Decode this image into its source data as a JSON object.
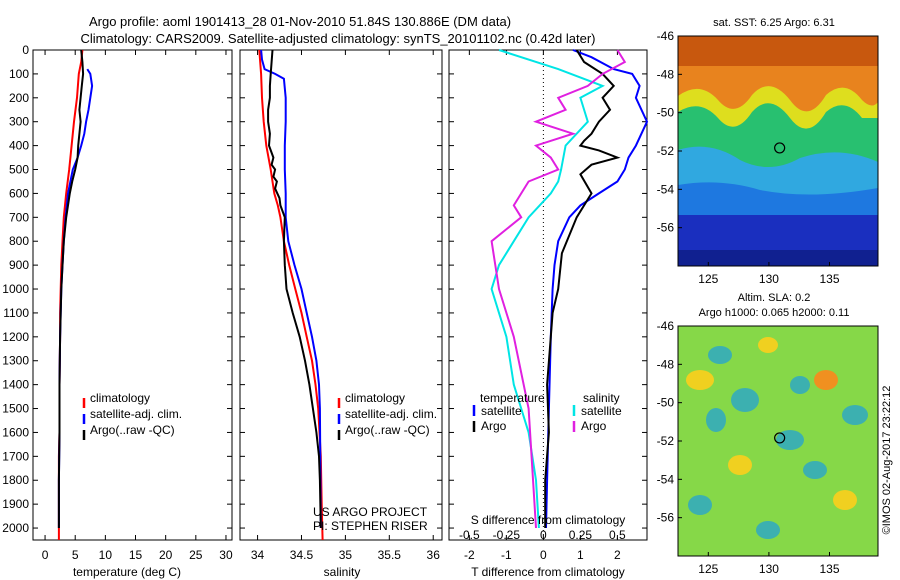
{
  "header": {
    "line1": "Argo profile: aoml 1901413_28 01-Nov-2010 51.84S 130.886E (DM data)",
    "line2": "Climatology: CARS2009. Satellite-adjusted climatology: synTS_20101102.nc (0.42d later)"
  },
  "colors": {
    "climatology": "#ff0000",
    "satellite": "#0000ff",
    "argo": "#000000",
    "sat_salinity": "#00e5e5",
    "argo_salinity": "#e020e0"
  },
  "depth_ticks": [
    0,
    100,
    200,
    300,
    400,
    500,
    600,
    700,
    800,
    900,
    1000,
    1100,
    1200,
    1300,
    1400,
    1500,
    1600,
    1700,
    1800,
    1900,
    2000
  ],
  "legend_labels": [
    "climatology",
    "satellite-adj. clim.",
    "Argo(..raw -QC)"
  ],
  "chart_data": [
    {
      "type": "line",
      "xlabel": "temperature (deg C)",
      "xticks": [
        0,
        5,
        10,
        15,
        20,
        25,
        30
      ],
      "xlim": [
        -2,
        31
      ],
      "ylim": [
        2050,
        0
      ],
      "series": [
        {
          "name": "climatology",
          "color": "#ff0000",
          "x": [
            6.2,
            6.0,
            5.6,
            5.3,
            4.8,
            4.4,
            4.0,
            3.5,
            3.1,
            2.9,
            2.7,
            2.6,
            2.5,
            2.5,
            2.4,
            2.4,
            2.3,
            2.3,
            2.3,
            2.3
          ],
          "y": [
            0,
            50,
            100,
            200,
            300,
            400,
            500,
            600,
            700,
            800,
            900,
            1000,
            1100,
            1200,
            1400,
            1600,
            1700,
            1800,
            1900,
            2050
          ]
        },
        {
          "name": "satellite-adj. clim.",
          "color": "#0000ff",
          "x": [
            7.0,
            7.5,
            7.8,
            7.5,
            7.2,
            6.8,
            6.5,
            6.0,
            5.4,
            4.6,
            3.8,
            3.4,
            3.1,
            2.9,
            2.7,
            2.6,
            2.5,
            2.4,
            2.4,
            2.3,
            2.3,
            2.3
          ],
          "y": [
            80,
            100,
            150,
            200,
            250,
            300,
            350,
            400,
            450,
            500,
            600,
            700,
            800,
            900,
            1000,
            1100,
            1200,
            1400,
            1600,
            1800,
            1900,
            2000
          ]
        },
        {
          "name": "Argo(..raw -QC)",
          "color": "#000000",
          "x": [
            6.0,
            6.2,
            6.3,
            6.1,
            5.9,
            5.7,
            5.9,
            5.7,
            5.5,
            5.4,
            5.0,
            4.5,
            4.1,
            3.5,
            3.1,
            2.9,
            2.7,
            2.6,
            2.5,
            2.4,
            2.4,
            2.3,
            2.3,
            2.3
          ],
          "y": [
            0,
            50,
            100,
            150,
            200,
            250,
            300,
            350,
            400,
            450,
            500,
            550,
            600,
            700,
            800,
            900,
            1000,
            1100,
            1200,
            1400,
            1600,
            1800,
            1900,
            2000
          ]
        }
      ]
    },
    {
      "type": "line",
      "xlabel": "salinity",
      "xticks": [
        34,
        34.5,
        35,
        35.5,
        36
      ],
      "xlim": [
        33.8,
        36.1
      ],
      "ylim": [
        2050,
        0
      ],
      "series": [
        {
          "name": "climatology",
          "color": "#ff0000",
          "x": [
            34.02,
            34.04,
            34.05,
            34.07,
            34.1,
            34.15,
            34.19,
            34.23,
            34.26,
            34.3,
            34.36,
            34.43,
            34.5,
            34.56,
            34.62,
            34.66,
            34.69,
            34.72,
            34.73,
            34.74
          ],
          "y": [
            0,
            100,
            200,
            300,
            400,
            500,
            600,
            650,
            700,
            800,
            900,
            1000,
            1100,
            1200,
            1300,
            1400,
            1500,
            1700,
            1900,
            2050
          ]
        },
        {
          "name": "satellite-adj. clim.",
          "color": "#0000ff",
          "x": [
            34.04,
            34.05,
            34.08,
            34.2,
            34.3,
            34.32,
            34.32,
            34.31,
            34.31,
            34.32,
            34.32,
            34.35,
            34.42,
            34.5,
            34.56,
            34.62,
            34.67,
            34.7,
            34.71,
            34.72
          ],
          "y": [
            0,
            40,
            80,
            100,
            120,
            200,
            300,
            400,
            500,
            600,
            700,
            800,
            900,
            1000,
            1100,
            1200,
            1300,
            1400,
            1500,
            2000
          ]
        },
        {
          "name": "Argo(..raw -QC)",
          "color": "#000000",
          "x": [
            34.17,
            34.16,
            34.15,
            34.14,
            34.14,
            34.12,
            34.12,
            34.14,
            34.13,
            34.18,
            34.16,
            34.2,
            34.18,
            34.22,
            34.2,
            34.25,
            34.26,
            34.31,
            34.3,
            34.31,
            34.33,
            34.4,
            34.48,
            34.54,
            34.59,
            34.63,
            34.67,
            34.7,
            34.71,
            34.72
          ],
          "y": [
            0,
            50,
            100,
            150,
            200,
            250,
            300,
            350,
            400,
            450,
            480,
            500,
            530,
            550,
            580,
            620,
            650,
            700,
            800,
            900,
            1000,
            1100,
            1200,
            1300,
            1400,
            1500,
            1600,
            1700,
            1800,
            2000
          ]
        }
      ],
      "annotations": [
        "US ARGO PROJECT",
        "PI: STEPHEN RISER"
      ]
    },
    {
      "type": "line",
      "xlabel": "T difference from climatology",
      "xticks": [
        -2,
        -1,
        0,
        1,
        2
      ],
      "xlim": [
        -2.55,
        2.8
      ],
      "ylim": [
        2050,
        0
      ],
      "secondary_axis": {
        "label": "S difference from climatology",
        "ticks": [
          -0.5,
          -0.25,
          0,
          0.25,
          0.5
        ]
      },
      "legend_headings": [
        "temperature",
        "salinity"
      ],
      "legend_entries": [
        "satellite",
        "Argo",
        "satellite",
        "Argo"
      ],
      "series": [
        {
          "name": "temperature satellite",
          "color": "#0000ff",
          "x": [
            0.8,
            1.3,
            1.9,
            2.4,
            2.6,
            2.5,
            2.8,
            2.5,
            2.3,
            2.2,
            2.0,
            1.5,
            1.0,
            0.7,
            0.4,
            0.3,
            0.25,
            0.2,
            0.15,
            0.1,
            0.07
          ],
          "y": [
            0,
            30,
            80,
            100,
            150,
            200,
            300,
            400,
            450,
            500,
            550,
            600,
            650,
            700,
            800,
            900,
            1000,
            1200,
            1500,
            1800,
            2000
          ]
        },
        {
          "name": "temperature Argo",
          "color": "#000000",
          "x": [
            0.9,
            1.1,
            1.6,
            1.9,
            1.6,
            1.8,
            1.5,
            1.3,
            1.1,
            1.0,
            1.5,
            2.0,
            1.3,
            1.0,
            1.3,
            0.9,
            0.5,
            0.4,
            0.25,
            0.2,
            0.1,
            0.15,
            0.05,
            0.05
          ],
          "y": [
            0,
            50,
            100,
            150,
            200,
            250,
            300,
            350,
            380,
            400,
            420,
            450,
            480,
            520,
            600,
            700,
            850,
            1000,
            1100,
            1200,
            1400,
            1600,
            1800,
            2000
          ]
        },
        {
          "name": "salinity satellite",
          "color": "#00e5e5",
          "x": [
            -0.3,
            0.1,
            0.4,
            0.25,
            0.3,
            0.15,
            0.12,
            0.1,
            0.05,
            -0.1,
            -0.2,
            -0.3,
            -0.35,
            -0.3,
            -0.25,
            -0.2,
            -0.15,
            -0.1,
            -0.05,
            -0.03
          ],
          "y": [
            0,
            80,
            150,
            200,
            300,
            400,
            500,
            550,
            600,
            700,
            800,
            900,
            1000,
            1100,
            1200,
            1400,
            1500,
            1600,
            1800,
            2000
          ]
        },
        {
          "name": "salinity Argo",
          "color": "#e020e0",
          "x": [
            0.5,
            0.55,
            0.4,
            0.3,
            0.1,
            0.15,
            -0.05,
            0.2,
            -0.05,
            0.05,
            0.1,
            -0.1,
            -0.2,
            -0.15,
            -0.35,
            -0.3,
            -0.2,
            -0.1,
            -0.05
          ],
          "y": [
            0,
            50,
            100,
            150,
            200,
            250,
            300,
            350,
            400,
            450,
            500,
            550,
            650,
            700,
            800,
            1000,
            1200,
            1500,
            2000
          ]
        }
      ]
    },
    {
      "type": "heatmap",
      "title": "sat. SST: 6.25 Argo: 6.31",
      "xticks": [
        125,
        130,
        135
      ],
      "yticks": [
        -46,
        -48,
        -50,
        -52,
        -54,
        -56
      ],
      "xlim": [
        122.5,
        139
      ],
      "ylim": [
        -46,
        -58
      ],
      "marker": {
        "lon": 130.886,
        "lat": -51.84
      }
    },
    {
      "type": "heatmap",
      "title": "Altim. SLA: 0.2",
      "subtitle": "Argo h1000: 0.065 h2000: 0.11",
      "xticks": [
        125,
        130,
        135
      ],
      "yticks": [
        -46,
        -48,
        -50,
        -52,
        -54,
        -56
      ],
      "xlim": [
        122.5,
        139
      ],
      "ylim": [
        -46,
        -58
      ],
      "marker": {
        "lon": 130.886,
        "lat": -51.84
      }
    }
  ],
  "footer_stamp": "©IMOS 02-Aug-2017 23:22:12"
}
